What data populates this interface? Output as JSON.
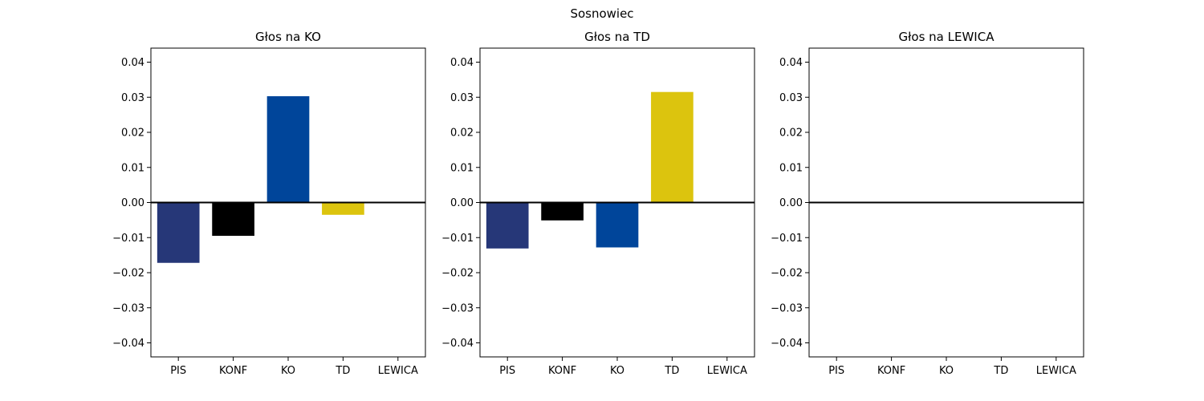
{
  "figure": {
    "suptitle": "Sosnowiec"
  },
  "colors": {
    "PIS": "#263778",
    "KONF": "#000000",
    "KO": "#00459a",
    "TD": "#dcc40e",
    "LEWICA": "#a1117c",
    "zero_line": "#000000",
    "axes_frame": "#000000",
    "background": "#ffffff"
  },
  "chart_data": [
    {
      "type": "bar",
      "title": "Głos na KO",
      "xlabel": "",
      "ylabel": "",
      "categories": [
        "PIS",
        "KONF",
        "KO",
        "TD",
        "LEWICA"
      ],
      "values": [
        -0.0172,
        -0.0095,
        0.0303,
        -0.0035,
        0.0
      ],
      "ylim": [
        -0.044,
        0.044
      ],
      "yticks": [
        -0.04,
        -0.03,
        -0.02,
        -0.01,
        0.0,
        0.01,
        0.02,
        0.03,
        0.04
      ],
      "ytick_labels": [
        "−0.04",
        "−0.03",
        "−0.02",
        "−0.01",
        "0.00",
        "0.01",
        "0.02",
        "0.03",
        "0.04"
      ],
      "grid": false,
      "legend": "none",
      "zero_line": true
    },
    {
      "type": "bar",
      "title": "Głos na TD",
      "xlabel": "",
      "ylabel": "",
      "categories": [
        "PIS",
        "KONF",
        "KO",
        "TD",
        "LEWICA"
      ],
      "values": [
        -0.0131,
        -0.0051,
        -0.0128,
        0.0315,
        0.0
      ],
      "ylim": [
        -0.044,
        0.044
      ],
      "yticks": [
        -0.04,
        -0.03,
        -0.02,
        -0.01,
        0.0,
        0.01,
        0.02,
        0.03,
        0.04
      ],
      "ytick_labels": [
        "−0.04",
        "−0.03",
        "−0.02",
        "−0.01",
        "0.00",
        "0.01",
        "0.02",
        "0.03",
        "0.04"
      ],
      "grid": false,
      "legend": "none",
      "zero_line": true
    },
    {
      "type": "bar",
      "title": "Głos na LEWICA",
      "xlabel": "",
      "ylabel": "",
      "categories": [
        "PIS",
        "KONF",
        "KO",
        "TD",
        "LEWICA"
      ],
      "values": [
        0.0,
        0.0,
        0.0,
        0.0,
        0.0
      ],
      "ylim": [
        -0.044,
        0.044
      ],
      "yticks": [
        -0.04,
        -0.03,
        -0.02,
        -0.01,
        0.0,
        0.01,
        0.02,
        0.03,
        0.04
      ],
      "ytick_labels": [
        "−0.04",
        "−0.03",
        "−0.02",
        "−0.01",
        "0.00",
        "0.01",
        "0.02",
        "0.03",
        "0.04"
      ],
      "grid": false,
      "legend": "none",
      "zero_line": true
    }
  ]
}
